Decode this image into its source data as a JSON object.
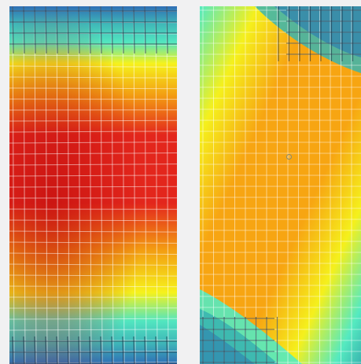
{
  "panels": [
    {
      "id": "left",
      "colormap": "jet",
      "colors": {
        "deep_blue": "#2f6fb5",
        "teal": "#3fb8b8",
        "cyan": "#52e6c0",
        "yellow": "#f6f21c",
        "orange": "#f39c12",
        "red": "#e3261c",
        "dark_red": "#c4100f"
      }
    },
    {
      "id": "right",
      "colormap": "jet",
      "colors": {
        "deep_blue": "#2f7fb0",
        "teal": "#3ab5b0",
        "cyan": "#55eac0",
        "yellow": "#f5f01c",
        "orange": "#f7a512"
      },
      "has_marker": true
    }
  ]
}
